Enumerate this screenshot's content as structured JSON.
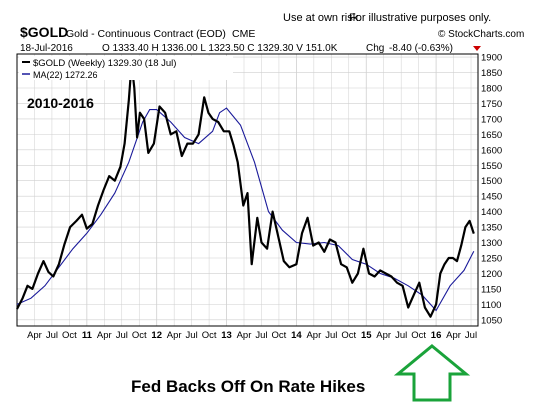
{
  "header": {
    "disclaimer": "Use at own risk.",
    "illustrative": "For illustrative purposes only.",
    "symbol": "$GOLD",
    "instrument": "Gold - Continuous Contract (EOD)",
    "exchange": "CME",
    "date": "18-Jul-2016",
    "ohlc": "O 1333.40  H 1336.00  L 1323.50  C 1329.30  V 151.0K",
    "change_label": "Chg",
    "change_value": "-8.40 (-0.63%)",
    "watermark": "© StockCharts.com"
  },
  "legend": {
    "price": "$GOLD (Weekly) 1329.30 (18 Jul)",
    "ma": "MA(22) 1272.26"
  },
  "overlay_label": "2010-2016",
  "caption": "Fed Backs Off On Rate Hikes",
  "colors": {
    "price_line": "#000000",
    "ma_line": "#1a1a9a",
    "grid": "#cfcfcf",
    "arrow": "#1aa33a",
    "change_value": "#cc0000"
  },
  "chart_data": {
    "type": "line",
    "xlabel": "",
    "ylabel": "",
    "ylim": [
      1030,
      1910
    ],
    "y_ticks": [
      1050,
      1100,
      1150,
      1200,
      1250,
      1300,
      1350,
      1400,
      1450,
      1500,
      1550,
      1600,
      1650,
      1700,
      1750,
      1800,
      1850,
      1900
    ],
    "x_ticks": [
      {
        "label": "Apr",
        "t": 2010.25,
        "bold": false
      },
      {
        "label": "Jul",
        "t": 2010.5,
        "bold": false
      },
      {
        "label": "Oct",
        "t": 2010.75,
        "bold": false
      },
      {
        "label": "11",
        "t": 2011.0,
        "bold": true
      },
      {
        "label": "Apr",
        "t": 2011.25,
        "bold": false
      },
      {
        "label": "Jul",
        "t": 2011.5,
        "bold": false
      },
      {
        "label": "Oct",
        "t": 2011.75,
        "bold": false
      },
      {
        "label": "12",
        "t": 2012.0,
        "bold": true
      },
      {
        "label": "Apr",
        "t": 2012.25,
        "bold": false
      },
      {
        "label": "Jul",
        "t": 2012.5,
        "bold": false
      },
      {
        "label": "Oct",
        "t": 2012.75,
        "bold": false
      },
      {
        "label": "13",
        "t": 2013.0,
        "bold": true
      },
      {
        "label": "Apr",
        "t": 2013.25,
        "bold": false
      },
      {
        "label": "Jul",
        "t": 2013.5,
        "bold": false
      },
      {
        "label": "Oct",
        "t": 2013.75,
        "bold": false
      },
      {
        "label": "14",
        "t": 2014.0,
        "bold": true
      },
      {
        "label": "Apr",
        "t": 2014.25,
        "bold": false
      },
      {
        "label": "Jul",
        "t": 2014.5,
        "bold": false
      },
      {
        "label": "Oct",
        "t": 2014.75,
        "bold": false
      },
      {
        "label": "15",
        "t": 2015.0,
        "bold": true
      },
      {
        "label": "Apr",
        "t": 2015.25,
        "bold": false
      },
      {
        "label": "Jul",
        "t": 2015.5,
        "bold": false
      },
      {
        "label": "Oct",
        "t": 2015.75,
        "bold": false
      },
      {
        "label": "16",
        "t": 2016.0,
        "bold": true
      },
      {
        "label": "Apr",
        "t": 2016.25,
        "bold": false
      },
      {
        "label": "Jul",
        "t": 2016.5,
        "bold": false
      }
    ],
    "series": [
      {
        "name": "$GOLD (Weekly)",
        "role": "price",
        "x": [
          2010.0,
          2010.08,
          2010.15,
          2010.22,
          2010.3,
          2010.38,
          2010.45,
          2010.52,
          2010.6,
          2010.68,
          2010.76,
          2010.85,
          2010.93,
          2011.0,
          2011.08,
          2011.16,
          2011.24,
          2011.32,
          2011.4,
          2011.48,
          2011.54,
          2011.6,
          2011.64,
          2011.68,
          2011.72,
          2011.76,
          2011.82,
          2011.88,
          2011.96,
          2012.04,
          2012.12,
          2012.2,
          2012.28,
          2012.36,
          2012.44,
          2012.52,
          2012.6,
          2012.68,
          2012.74,
          2012.8,
          2012.88,
          2012.96,
          2013.04,
          2013.1,
          2013.16,
          2013.24,
          2013.3,
          2013.36,
          2013.44,
          2013.5,
          2013.58,
          2013.66,
          2013.74,
          2013.82,
          2013.9,
          2014.0,
          2014.08,
          2014.16,
          2014.24,
          2014.32,
          2014.4,
          2014.48,
          2014.56,
          2014.64,
          2014.72,
          2014.8,
          2014.88,
          2014.96,
          2015.04,
          2015.12,
          2015.2,
          2015.28,
          2015.36,
          2015.44,
          2015.52,
          2015.6,
          2015.68,
          2015.76,
          2015.84,
          2015.92,
          2016.0,
          2016.06,
          2016.12,
          2016.18,
          2016.24,
          2016.3,
          2016.36,
          2016.42,
          2016.48,
          2016.54
        ],
        "values": [
          1085,
          1120,
          1160,
          1150,
          1200,
          1240,
          1205,
          1190,
          1230,
          1295,
          1350,
          1370,
          1390,
          1345,
          1360,
          1420,
          1470,
          1515,
          1500,
          1545,
          1620,
          1760,
          1880,
          1800,
          1640,
          1720,
          1700,
          1590,
          1620,
          1740,
          1720,
          1650,
          1660,
          1580,
          1620,
          1620,
          1650,
          1770,
          1720,
          1700,
          1690,
          1660,
          1660,
          1615,
          1560,
          1420,
          1460,
          1230,
          1380,
          1300,
          1280,
          1400,
          1320,
          1240,
          1220,
          1230,
          1330,
          1380,
          1290,
          1300,
          1270,
          1310,
          1300,
          1230,
          1220,
          1170,
          1200,
          1280,
          1200,
          1190,
          1210,
          1200,
          1190,
          1170,
          1160,
          1090,
          1130,
          1170,
          1090,
          1060,
          1100,
          1200,
          1230,
          1250,
          1250,
          1240,
          1290,
          1350,
          1370,
          1329
        ]
      },
      {
        "name": "MA(22)",
        "role": "ma",
        "x": [
          2010.0,
          2010.2,
          2010.4,
          2010.6,
          2010.8,
          2011.0,
          2011.2,
          2011.4,
          2011.6,
          2011.8,
          2011.9,
          2012.0,
          2012.2,
          2012.4,
          2012.6,
          2012.8,
          2012.9,
          2013.0,
          2013.2,
          2013.4,
          2013.6,
          2013.8,
          2014.0,
          2014.2,
          2014.4,
          2014.6,
          2014.8,
          2015.0,
          2015.2,
          2015.4,
          2015.6,
          2015.8,
          2016.0,
          2016.2,
          2016.4,
          2016.54
        ],
        "values": [
          1100,
          1120,
          1160,
          1220,
          1280,
          1330,
          1390,
          1460,
          1560,
          1690,
          1730,
          1730,
          1690,
          1640,
          1620,
          1660,
          1720,
          1735,
          1680,
          1560,
          1400,
          1340,
          1300,
          1295,
          1300,
          1290,
          1245,
          1230,
          1200,
          1185,
          1160,
          1130,
          1080,
          1160,
          1210,
          1272
        ]
      }
    ]
  }
}
